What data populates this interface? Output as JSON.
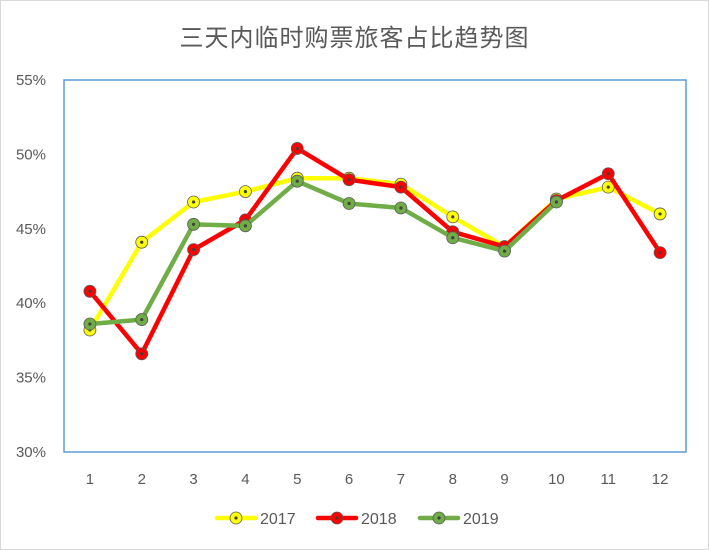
{
  "chart_data": {
    "type": "line",
    "title": "三天内临时购票旅客占比趋势图",
    "xlabel": "",
    "ylabel": "",
    "categories": [
      "1",
      "2",
      "3",
      "4",
      "5",
      "6",
      "7",
      "8",
      "9",
      "10",
      "11",
      "12"
    ],
    "ylim": [
      30,
      55
    ],
    "yticks": [
      "30%",
      "35%",
      "40%",
      "45%",
      "50%",
      "55%"
    ],
    "grid": false,
    "legend_position": "bottom",
    "series": [
      {
        "name": "2017",
        "color": "#ffff00",
        "values": [
          38.2,
          44.1,
          46.8,
          47.5,
          48.4,
          48.4,
          48.0,
          45.8,
          43.8,
          47.0,
          47.8,
          46.0
        ]
      },
      {
        "name": "2018",
        "color": "#ff0000",
        "values": [
          40.8,
          36.6,
          43.6,
          45.6,
          50.4,
          48.3,
          47.8,
          44.8,
          43.8,
          46.9,
          48.7,
          43.4
        ]
      },
      {
        "name": "2019",
        "color": "#70ad47",
        "values": [
          38.6,
          38.9,
          45.3,
          45.2,
          48.2,
          46.7,
          46.4,
          44.4,
          43.5,
          46.8,
          null,
          null
        ]
      }
    ]
  }
}
